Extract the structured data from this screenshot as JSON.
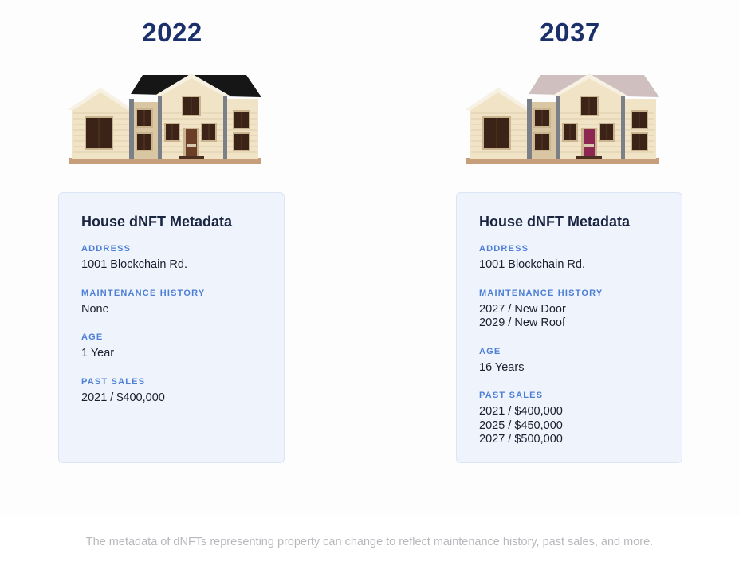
{
  "columns": [
    {
      "year": "2022",
      "door_color": "#6b3f27",
      "card_title": "House dNFT Metadata",
      "address_label": "ADDRESS",
      "address": "1001 Blockchain Rd.",
      "maintenance_label": "MAINTENANCE HISTORY",
      "maintenance": [
        "None"
      ],
      "age_label": "AGE",
      "age": "1 Year",
      "sales_label": "PAST SALES",
      "sales": [
        "2021 / $400,000"
      ]
    },
    {
      "year": "2037",
      "door_color": "#8e2652",
      "card_title": "House dNFT Metadata",
      "address_label": "ADDRESS",
      "address": "1001 Blockchain Rd.",
      "maintenance_label": "MAINTENANCE HISTORY",
      "maintenance": [
        "2027 / New Door",
        "2029 / New Roof"
      ],
      "age_label": "AGE",
      "age": "16 Years",
      "sales_label": "PAST SALES",
      "sales": [
        "2021 / $400,000",
        "2025 / $450,000",
        "2027 / $500,000"
      ]
    }
  ],
  "house_icons": [
    "house-old-roof-illustration",
    "house-new-roof-illustration"
  ],
  "roof_colors": [
    "#161616",
    "#cfc0bf"
  ],
  "caption": "The metadata of dNFTs representing property can change to reflect maintenance history, past sales, and more."
}
